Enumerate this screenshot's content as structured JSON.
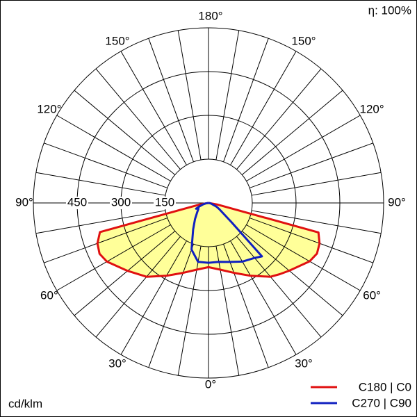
{
  "chart_data": {
    "type": "polar",
    "efficiency_label": "η: 100%",
    "unit_label": "cd/klm",
    "angles": [
      -90,
      -80,
      -75,
      -70,
      -65,
      -60,
      -50,
      -40,
      -30,
      -20,
      -10,
      0,
      10,
      20,
      30,
      40,
      45,
      50,
      60,
      65,
      70,
      75,
      80,
      90
    ],
    "series": [
      {
        "name": "C180 | C0",
        "color": "#e01010",
        "fill": "#ffff99",
        "values": [
          0,
          30,
          385,
          405,
          412,
          402,
          362,
          330,
          288,
          255,
          232,
          220,
          232,
          255,
          288,
          330,
          345,
          361,
          400,
          410,
          405,
          390,
          30,
          0
        ]
      },
      {
        "name": "C270 | C90",
        "color": "#1020c0",
        "values": [
          0,
          10,
          20,
          30,
          47,
          40,
          51,
          72,
          105,
          170,
          205,
          205,
          205,
          215,
          232,
          246,
          259,
          104,
          43,
          30,
          15,
          10,
          5,
          0
        ]
      }
    ],
    "rlim": [
      0,
      600
    ],
    "rticks": [
      150,
      300,
      450
    ],
    "angle_ticks": [
      {
        "value": 0,
        "label": "0°"
      },
      {
        "value": 30,
        "label": "30°"
      },
      {
        "value": 60,
        "label": "60°"
      },
      {
        "value": 90,
        "label": "90°"
      },
      {
        "value": 120,
        "label": "120°"
      },
      {
        "value": 150,
        "label": "150°"
      },
      {
        "value": 180,
        "label": "180°"
      }
    ]
  }
}
